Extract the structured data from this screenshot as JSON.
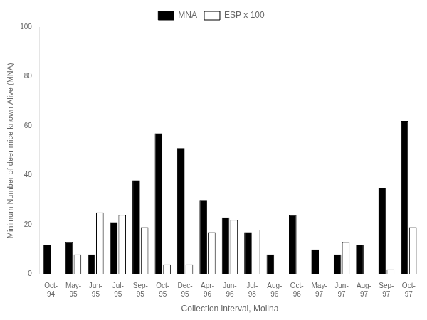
{
  "chart_data": {
    "type": "bar",
    "categories": [
      "Oct-\n94",
      "May-\n95",
      "Jun-\n95",
      "Jul-\n95",
      "Sep-\n95",
      "Oct-\n95",
      "Dec-\n95",
      "Apr-\n96",
      "Jun-\n96",
      "Jul-\n98",
      "Aug-\n96",
      "Oct-\n96",
      "May-\n97",
      "Jun-\n97",
      "Aug-\n97",
      "Sep-\n97",
      "Oct-\n97"
    ],
    "series": [
      {
        "name": "MNA",
        "color": "#000000",
        "values": [
          12,
          13,
          8,
          21,
          38,
          57,
          51,
          30,
          23,
          17,
          8,
          24,
          10,
          8,
          12,
          35,
          62
        ]
      },
      {
        "name": "ESP x 100",
        "color": "#ffffff",
        "values": [
          0,
          8,
          25,
          24,
          19,
          4,
          4,
          17,
          22,
          18,
          0,
          0,
          0,
          13,
          0,
          2,
          19
        ]
      }
    ],
    "xlabel": "Collection interval, Molina",
    "ylabel": "Minimum Number of deer mice known Alive (MNA)",
    "ylim": [
      0,
      100
    ],
    "yticks": [
      0,
      20,
      40,
      60,
      80,
      100
    ],
    "grid": false,
    "legend": "top"
  }
}
